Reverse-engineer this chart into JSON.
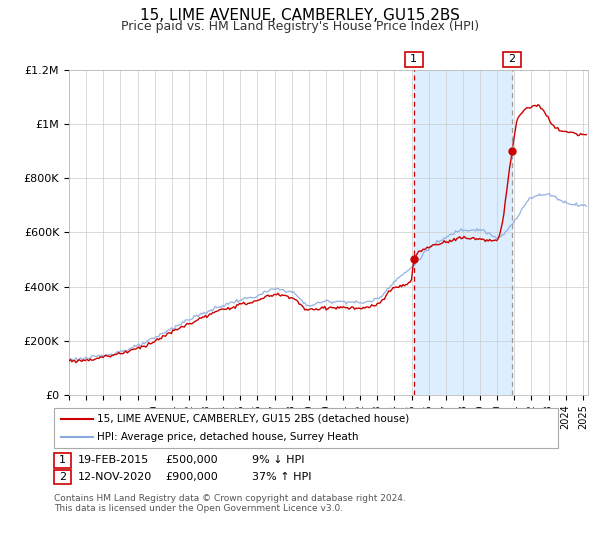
{
  "title": "15, LIME AVENUE, CAMBERLEY, GU15 2BS",
  "subtitle": "Price paid vs. HM Land Registry's House Price Index (HPI)",
  "x_start": 1995.0,
  "x_end": 2025.3,
  "y_min": 0,
  "y_max": 1200000,
  "y_ticks": [
    0,
    200000,
    400000,
    600000,
    800000,
    1000000,
    1200000
  ],
  "y_tick_labels": [
    "£0",
    "£200K",
    "£400K",
    "£600K",
    "£800K",
    "£1M",
    "£1.2M"
  ],
  "x_ticks": [
    1995,
    1996,
    1997,
    1998,
    1999,
    2000,
    2001,
    2002,
    2003,
    2004,
    2005,
    2006,
    2007,
    2008,
    2009,
    2010,
    2011,
    2012,
    2013,
    2014,
    2015,
    2016,
    2017,
    2018,
    2019,
    2020,
    2021,
    2022,
    2023,
    2024,
    2025
  ],
  "marker1_x": 2015.12,
  "marker1_y": 500000,
  "marker2_x": 2020.87,
  "marker2_y": 900000,
  "vline1_x": 2015.12,
  "vline2_x": 2020.87,
  "shade_start": 2015.12,
  "shade_end": 2020.87,
  "legend1_label": "15, LIME AVENUE, CAMBERLEY, GU15 2BS (detached house)",
  "legend2_label": "HPI: Average price, detached house, Surrey Heath",
  "table_row1": [
    "1",
    "19-FEB-2015",
    "£500,000",
    "9% ↓ HPI"
  ],
  "table_row2": [
    "2",
    "12-NOV-2020",
    "£900,000",
    "37% ↑ HPI"
  ],
  "footnote1": "Contains HM Land Registry data © Crown copyright and database right 2024.",
  "footnote2": "This data is licensed under the Open Government Licence v3.0.",
  "red_color": "#cc0000",
  "blue_color": "#88aadd",
  "shade_color": "#ddeeff",
  "grid_color": "#cccccc",
  "bg_color": "#ffffff",
  "title_fontsize": 11,
  "subtitle_fontsize": 9
}
